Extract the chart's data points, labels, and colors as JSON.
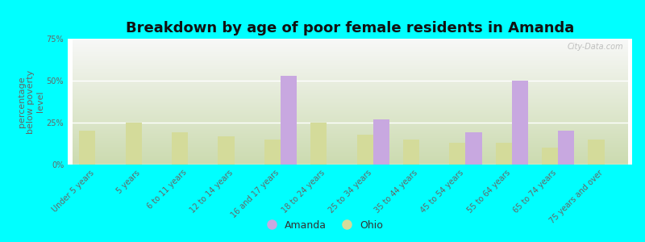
{
  "title": "Breakdown by age of poor female residents in Amanda",
  "ylabel": "percentage\nbelow poverty\nlevel",
  "categories": [
    "Under 5 years",
    "5 years",
    "6 to 11 years",
    "12 to 14 years",
    "16 and 17 years",
    "18 to 24 years",
    "25 to 34 years",
    "35 to 44 years",
    "45 to 54 years",
    "55 to 64 years",
    "65 to 74 years",
    "75 years and over"
  ],
  "amanda_values": [
    0,
    0,
    0,
    0,
    53,
    0,
    27,
    0,
    19,
    50,
    20,
    0
  ],
  "ohio_values": [
    20,
    25,
    19,
    17,
    15,
    25,
    18,
    15,
    13,
    13,
    10,
    15
  ],
  "amanda_color": "#c8a8e0",
  "ohio_color": "#d4db9a",
  "background_color": "#00ffff",
  "ylim": [
    0,
    75
  ],
  "yticks": [
    0,
    25,
    50,
    75
  ],
  "ytick_labels": [
    "0%",
    "25%",
    "50%",
    "75%"
  ],
  "title_fontsize": 13,
  "axis_label_fontsize": 8,
  "tick_fontsize": 7,
  "legend_fontsize": 9,
  "bar_width": 0.35,
  "watermark": "City-Data.com"
}
